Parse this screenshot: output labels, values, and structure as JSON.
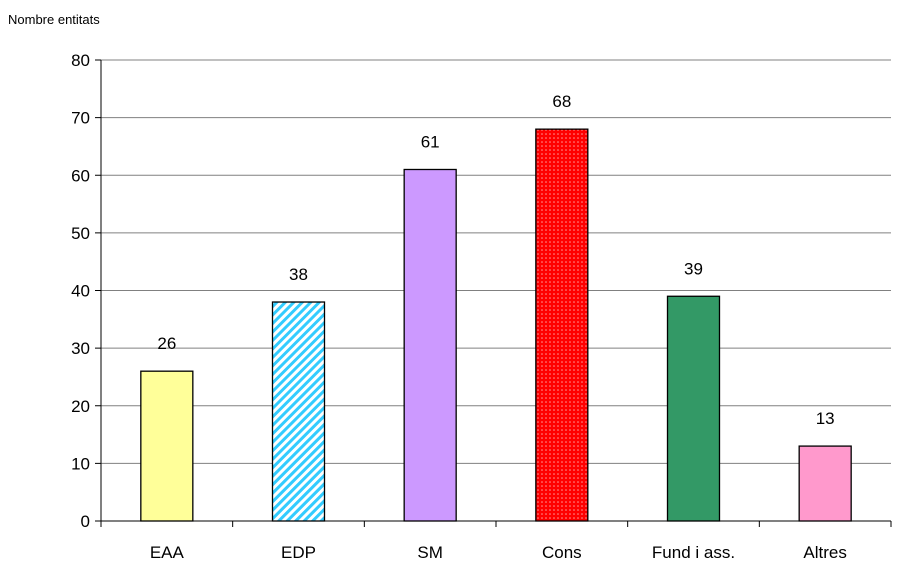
{
  "chart_data": {
    "type": "bar",
    "title": "",
    "xlabel": "",
    "ylabel": "Nombre entitats",
    "categories": [
      "EAA",
      "EDP",
      "SM",
      "Cons",
      "Fund i ass.",
      "Altres"
    ],
    "values": [
      26,
      38,
      61,
      68,
      39,
      13
    ],
    "ylim": [
      0,
      80
    ],
    "yticks": [
      0,
      10,
      20,
      30,
      40,
      50,
      60,
      70,
      80
    ],
    "grid": true,
    "legend": "none",
    "colors": [
      "#ffff99",
      "#99ccff",
      "#cc99ff",
      "#ff0000",
      "#339966",
      "#ff99cc"
    ],
    "fill_patterns": [
      "solid",
      "diagonal-hatch",
      "solid",
      "dotted",
      "solid",
      "solid"
    ]
  }
}
